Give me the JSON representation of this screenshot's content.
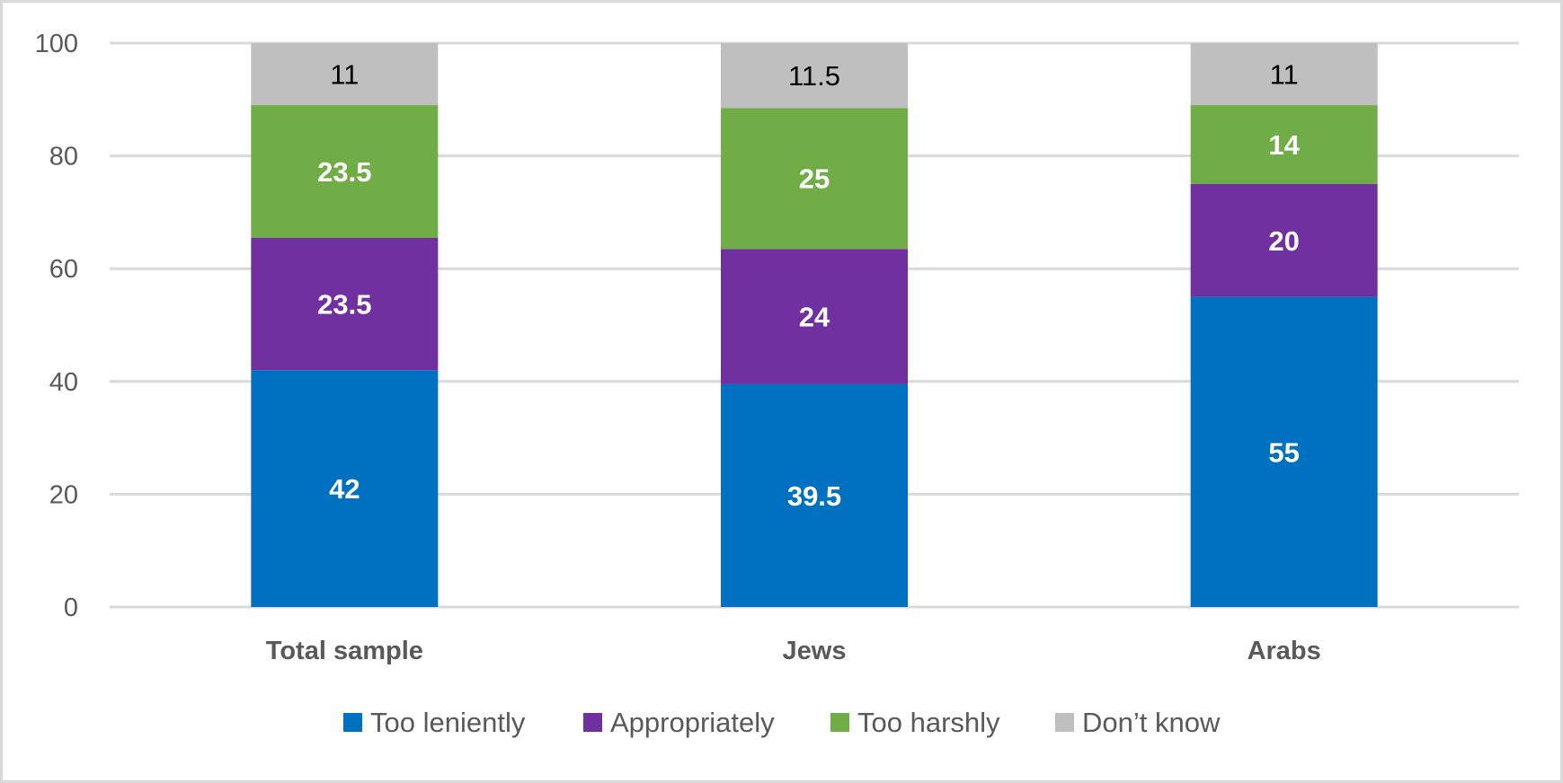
{
  "chart_data": {
    "type": "bar",
    "stacked": true,
    "categories": [
      "Total sample",
      "Jews",
      "Arabs"
    ],
    "series": [
      {
        "name": "Too leniently",
        "values": [
          42,
          39.5,
          55
        ],
        "color": "#0070C0",
        "label_color": "#ffffff",
        "label_weight": "bold"
      },
      {
        "name": "Appropriately",
        "values": [
          23.5,
          24,
          20
        ],
        "color": "#7030A0",
        "label_color": "#ffffff",
        "label_weight": "bold"
      },
      {
        "name": "Too harshly",
        "values": [
          23.5,
          25,
          14
        ],
        "color": "#70AD47",
        "label_color": "#ffffff",
        "label_weight": "bold"
      },
      {
        "name": "Don’t know",
        "values": [
          11,
          11.5,
          11
        ],
        "color": "#BFBFBF",
        "label_color": "#000000",
        "label_weight": "normal"
      }
    ],
    "data_labels": [
      [
        "42",
        "39.5",
        "55"
      ],
      [
        "23.5",
        "24",
        "20"
      ],
      [
        "23.5",
        "25",
        "14"
      ],
      [
        "11",
        "11.5",
        "11"
      ]
    ],
    "y_ticks": [
      "0",
      "20",
      "40",
      "60",
      "80",
      "100"
    ],
    "ylim": [
      0,
      100
    ],
    "grid": true,
    "gridline_color": "#d9d9d9",
    "legend_position": "bottom",
    "title": "",
    "xlabel": "",
    "ylabel": ""
  }
}
